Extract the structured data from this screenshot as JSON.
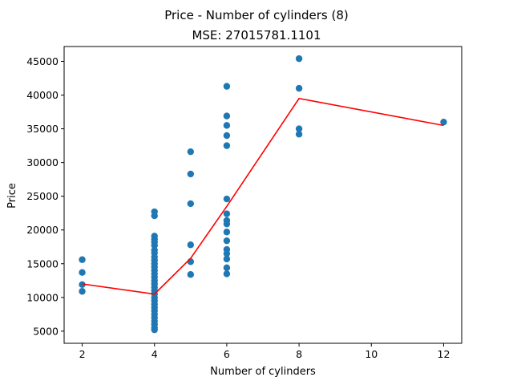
{
  "chart_data": {
    "type": "scatter",
    "title": "Price - Number of cylinders (8)",
    "subtitle": "MSE: 27015781.1101",
    "xlabel": "Number of cylinders",
    "ylabel": "Price",
    "xlim": [
      1.5,
      12.5
    ],
    "ylim": [
      3200,
      47200
    ],
    "xticks": [
      2,
      4,
      6,
      8,
      10,
      12
    ],
    "yticks": [
      5000,
      10000,
      15000,
      20000,
      25000,
      30000,
      35000,
      40000,
      45000
    ],
    "grid": false,
    "colors": {
      "points": "#1f77b4",
      "fit": "#ff0000"
    },
    "scatter": [
      {
        "x": 2,
        "y": 15600
      },
      {
        "x": 2,
        "y": 13700
      },
      {
        "x": 2,
        "y": 11900
      },
      {
        "x": 2,
        "y": 10900
      },
      {
        "x": 4,
        "y": 22700
      },
      {
        "x": 4,
        "y": 22100
      },
      {
        "x": 4,
        "y": 19100
      },
      {
        "x": 4,
        "y": 18600
      },
      {
        "x": 4,
        "y": 18200
      },
      {
        "x": 4,
        "y": 17700
      },
      {
        "x": 4,
        "y": 17000
      },
      {
        "x": 4,
        "y": 16600
      },
      {
        "x": 4,
        "y": 16000
      },
      {
        "x": 4,
        "y": 15500
      },
      {
        "x": 4,
        "y": 15000
      },
      {
        "x": 4,
        "y": 14500
      },
      {
        "x": 4,
        "y": 14000
      },
      {
        "x": 4,
        "y": 13500
      },
      {
        "x": 4,
        "y": 13000
      },
      {
        "x": 4,
        "y": 12500
      },
      {
        "x": 4,
        "y": 12000
      },
      {
        "x": 4,
        "y": 11500
      },
      {
        "x": 4,
        "y": 11000
      },
      {
        "x": 4,
        "y": 10500
      },
      {
        "x": 4,
        "y": 10000
      },
      {
        "x": 4,
        "y": 9500
      },
      {
        "x": 4,
        "y": 9000
      },
      {
        "x": 4,
        "y": 8500
      },
      {
        "x": 4,
        "y": 8000
      },
      {
        "x": 4,
        "y": 7500
      },
      {
        "x": 4,
        "y": 7000
      },
      {
        "x": 4,
        "y": 6500
      },
      {
        "x": 4,
        "y": 6000
      },
      {
        "x": 4,
        "y": 5500
      },
      {
        "x": 4,
        "y": 5200
      },
      {
        "x": 5,
        "y": 31600
      },
      {
        "x": 5,
        "y": 28300
      },
      {
        "x": 5,
        "y": 23900
      },
      {
        "x": 5,
        "y": 17800
      },
      {
        "x": 5,
        "y": 15300
      },
      {
        "x": 5,
        "y": 13400
      },
      {
        "x": 6,
        "y": 41300
      },
      {
        "x": 6,
        "y": 36900
      },
      {
        "x": 6,
        "y": 35500
      },
      {
        "x": 6,
        "y": 34000
      },
      {
        "x": 6,
        "y": 32500
      },
      {
        "x": 6,
        "y": 24600
      },
      {
        "x": 6,
        "y": 22400
      },
      {
        "x": 6,
        "y": 21400
      },
      {
        "x": 6,
        "y": 20900
      },
      {
        "x": 6,
        "y": 19700
      },
      {
        "x": 6,
        "y": 18400
      },
      {
        "x": 6,
        "y": 17100
      },
      {
        "x": 6,
        "y": 16500
      },
      {
        "x": 6,
        "y": 15700
      },
      {
        "x": 6,
        "y": 14400
      },
      {
        "x": 6,
        "y": 13500
      },
      {
        "x": 8,
        "y": 45400
      },
      {
        "x": 8,
        "y": 41000
      },
      {
        "x": 8,
        "y": 35000
      },
      {
        "x": 8,
        "y": 34200
      },
      {
        "x": 12,
        "y": 36000
      }
    ],
    "fit_line": [
      {
        "x": 2,
        "y": 12000
      },
      {
        "x": 4,
        "y": 10500
      },
      {
        "x": 5,
        "y": 15800
      },
      {
        "x": 6,
        "y": 23500
      },
      {
        "x": 8,
        "y": 39500
      },
      {
        "x": 12,
        "y": 35500
      }
    ]
  }
}
